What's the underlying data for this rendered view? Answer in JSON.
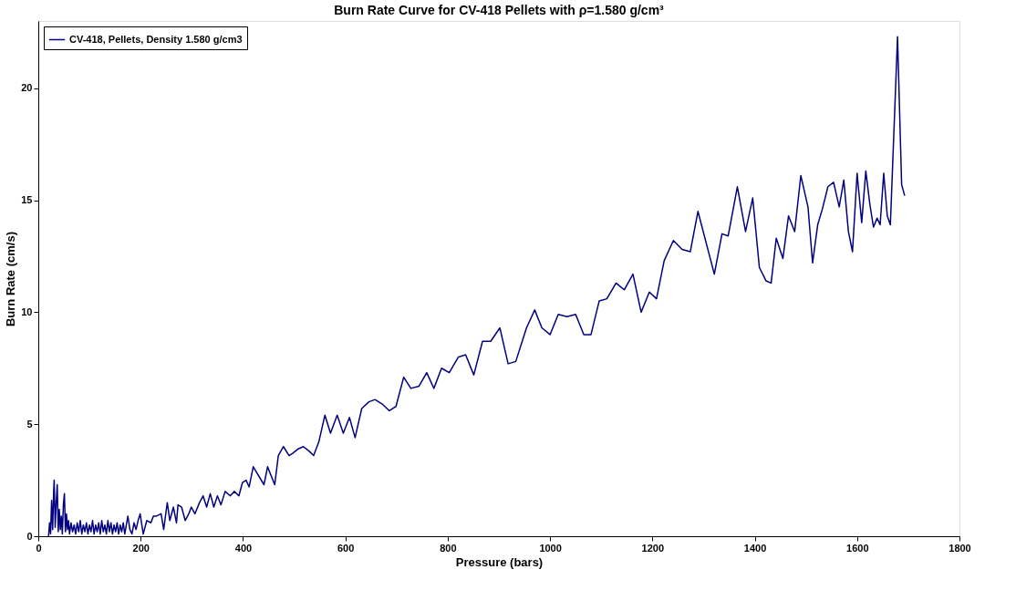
{
  "chart_data": {
    "type": "line",
    "title": "Burn Rate Curve for CV-418 Pellets with ρ=1.580 g/cm³",
    "xlabel": "Pressure (bars)",
    "ylabel": "Burn Rate (cm/s)",
    "xlim": [
      0,
      1800
    ],
    "xticks": [
      0,
      200,
      400,
      600,
      800,
      1000,
      1200,
      1400,
      1600,
      1800
    ],
    "ylim": [
      0,
      23
    ],
    "yticks": [
      0,
      5,
      10,
      15,
      20
    ],
    "grid": false,
    "legend": "top left",
    "marker": "none",
    "line_style": "solid",
    "series": [
      {
        "name": "CV-418, Pellets, Density 1.580 g/cm3",
        "color": "#000080",
        "x": [
          20,
          22,
          24,
          26,
          28,
          30,
          31,
          33,
          35,
          37,
          39,
          41,
          43,
          45,
          47,
          49,
          51,
          53,
          55,
          57,
          59,
          61,
          64,
          67,
          70,
          73,
          76,
          79,
          82,
          85,
          88,
          91,
          94,
          97,
          100,
          103,
          106,
          109,
          112,
          115,
          118,
          121,
          124,
          127,
          130,
          133,
          136,
          139,
          142,
          145,
          148,
          151,
          154,
          157,
          160,
          163,
          166,
          169,
          172,
          175,
          179,
          183,
          187,
          191,
          195,
          199,
          205,
          212,
          220,
          225,
          231,
          240,
          245,
          252,
          257,
          264,
          270,
          273,
          280,
          287,
          294,
          299,
          306,
          315,
          322,
          329,
          336,
          343,
          350,
          357,
          365,
          375,
          383,
          392,
          399,
          406,
          412,
          420,
          441,
          448,
          462,
          469,
          479,
          490,
          497,
          508,
          518,
          529,
          538,
          548,
          560,
          571,
          584,
          596,
          608,
          619,
          632,
          646,
          658,
          672,
          686,
          699,
          714,
          728,
          744,
          759,
          773,
          788,
          803,
          821,
          835,
          851,
          868,
          884,
          902,
          918,
          933,
          954,
          970,
          984,
          1000,
          1016,
          1033,
          1050,
          1066,
          1080,
          1096,
          1111,
          1129,
          1145,
          1162,
          1178,
          1194,
          1208,
          1223,
          1241,
          1258,
          1274,
          1289,
          1321,
          1336,
          1348,
          1366,
          1382,
          1396,
          1409,
          1422,
          1432,
          1442,
          1455,
          1466,
          1478,
          1490,
          1504,
          1513,
          1523,
          1532,
          1543,
          1554,
          1565,
          1574,
          1583,
          1591,
          1600,
          1609,
          1617,
          1625,
          1632,
          1639,
          1645,
          1652,
          1659,
          1665,
          1679,
          1687,
          1693
        ],
        "values": [
          0,
          0.6,
          0.1,
          1.6,
          0.3,
          2.0,
          2.5,
          0.4,
          1.5,
          2.3,
          0.2,
          1.2,
          0.3,
          0.9,
          0.1,
          1.4,
          1.9,
          0.2,
          1.0,
          0.3,
          0.7,
          0.1,
          0.6,
          0.2,
          0.5,
          0.1,
          0.6,
          0.2,
          0.7,
          0.1,
          0.5,
          0.2,
          0.6,
          0.1,
          0.5,
          0.2,
          0.7,
          0.1,
          0.5,
          0.2,
          0.6,
          0.1,
          0.7,
          0.2,
          0.5,
          0.1,
          0.7,
          0.2,
          0.6,
          0.1,
          0.5,
          0.2,
          0.6,
          0.1,
          0.5,
          0.2,
          0.6,
          0.1,
          0.5,
          0.9,
          0.3,
          0.1,
          0.6,
          0.3,
          0.7,
          1.0,
          0.1,
          0.7,
          0.6,
          0.9,
          0.9,
          1.0,
          0.3,
          1.5,
          0.7,
          1.3,
          0.6,
          1.4,
          1.3,
          0.7,
          1.0,
          1.3,
          1.0,
          1.5,
          1.8,
          1.3,
          1.9,
          1.3,
          1.8,
          1.4,
          2.0,
          1.8,
          2.0,
          1.8,
          2.4,
          2.5,
          2.2,
          3.1,
          2.3,
          3.1,
          2.3,
          3.6,
          4.0,
          3.6,
          3.7,
          3.9,
          4.0,
          3.8,
          3.6,
          4.2,
          5.4,
          4.6,
          5.4,
          4.6,
          5.3,
          4.4,
          5.7,
          6.0,
          6.1,
          5.9,
          5.6,
          5.8,
          7.1,
          6.6,
          6.7,
          7.3,
          6.6,
          7.5,
          7.3,
          8.0,
          8.1,
          7.2,
          8.7,
          8.7,
          9.3,
          7.7,
          7.8,
          9.3,
          10.1,
          9.3,
          9.0,
          9.9,
          9.8,
          9.9,
          9.0,
          9.0,
          10.5,
          10.6,
          11.3,
          11.0,
          11.7,
          10.0,
          10.9,
          10.6,
          12.3,
          13.2,
          12.8,
          12.7,
          14.5,
          11.7,
          13.5,
          13.4,
          15.6,
          13.6,
          15.1,
          12.0,
          11.4,
          11.3,
          13.3,
          12.4,
          14.3,
          13.6,
          16.1,
          14.7,
          12.2,
          13.9,
          14.6,
          15.6,
          15.8,
          14.7,
          15.9,
          13.6,
          12.7,
          16.2,
          14.0,
          16.3,
          14.8,
          13.8,
          14.2,
          13.9,
          16.2,
          14.3,
          13.9,
          22.3,
          15.7,
          15.2
        ]
      }
    ]
  }
}
